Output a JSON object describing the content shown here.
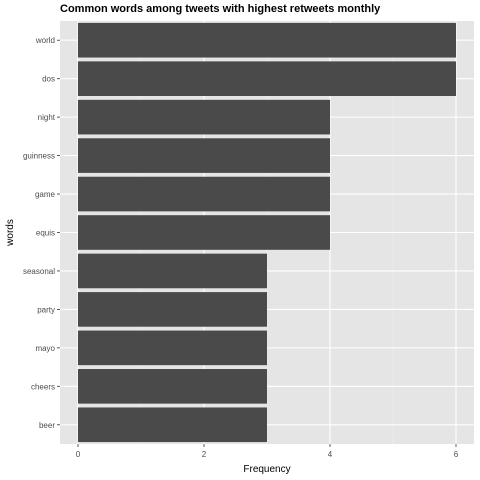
{
  "chart_data": {
    "type": "bar",
    "orientation": "horizontal",
    "title": "Common words among tweets with highest retweets monthly",
    "xlabel": "Frequency",
    "ylabel": "words",
    "categories": [
      "world",
      "dos",
      "night",
      "guinness",
      "game",
      "equis",
      "seasonal",
      "party",
      "mayo",
      "cheers",
      "beer"
    ],
    "values": [
      6,
      6,
      4,
      4,
      4,
      4,
      3,
      3,
      3,
      3,
      3
    ],
    "xticks": [
      "0",
      "2",
      "4",
      "6"
    ],
    "xlim": [
      0,
      6.3
    ],
    "grid": true,
    "legend": "none",
    "colors": {
      "bar": "#4a4a4a",
      "panel": "#e5e5e5",
      "grid_major": "#ffffff",
      "grid_minor": "#f0f0f0"
    }
  }
}
